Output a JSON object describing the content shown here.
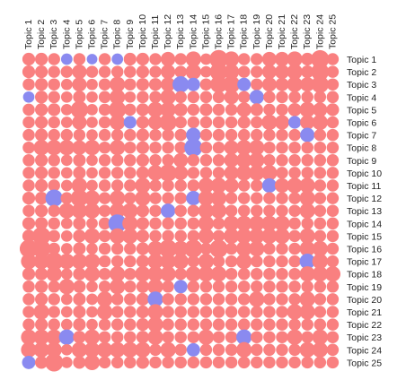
{
  "chart_data": {
    "type": "heatmap",
    "title": "",
    "xlabel": "",
    "ylabel": "",
    "encoding": "bubble matrix: circle area grows with |value|; color shows sign",
    "value_range": [
      -1,
      1
    ],
    "colors": {
      "positive": "#f98080",
      "negative": "#8a8af0"
    },
    "x_labels": [
      "Topic 1",
      "Topic 2",
      "Topic 3",
      "Topic 4",
      "Topic 5",
      "Topic 6",
      "Topic 7",
      "Topic 8",
      "Topic 9",
      "Topic 10",
      "Topic 11",
      "Topic 12",
      "Topic 13",
      "Topic 14",
      "Topic 15",
      "Topic 16",
      "Topic 17",
      "Topic 18",
      "Topic 19",
      "Topic 20",
      "Topic 21",
      "Topic 22",
      "Topic 23",
      "Topic 24",
      "Topic 25"
    ],
    "y_labels": [
      "Topic 1",
      "Topic 2",
      "Topic 3",
      "Topic 4",
      "Topic 5",
      "Topic 6",
      "Topic 7",
      "Topic 8",
      "Topic 9",
      "Topic 10",
      "Topic 11",
      "Topic 12",
      "Topic 13",
      "Topic 14",
      "Topic 15",
      "Topic 16",
      "Topic 17",
      "Topic 18",
      "Topic 19",
      "Topic 20",
      "Topic 21",
      "Topic 22",
      "Topic 23",
      "Topic 24",
      "Topic 25"
    ],
    "values": [
      [
        0.35,
        0.35,
        0.3,
        -0.25,
        0.3,
        -0.2,
        0.3,
        -0.25,
        0.35,
        0.35,
        0.3,
        0.5,
        0.3,
        0.6,
        0.25,
        0.95,
        0.6,
        0.3,
        0.3,
        0.5,
        0.5,
        0.6,
        0.35,
        0.9,
        0.3
      ],
      [
        0.35,
        0.35,
        0.3,
        0.3,
        0.5,
        0.3,
        0.3,
        0.3,
        0.3,
        0.35,
        0.3,
        0.5,
        0.3,
        0.6,
        0.25,
        0.85,
        0.6,
        0.3,
        0.3,
        0.5,
        0.5,
        0.6,
        0.35,
        0.85,
        0.3
      ],
      [
        0.3,
        0.35,
        0.3,
        0.25,
        0.5,
        0.25,
        0.3,
        0.6,
        0.3,
        0.35,
        0.35,
        0.5,
        -0.7,
        -0.4,
        0.3,
        0.75,
        0.8,
        -0.4,
        0.3,
        0.5,
        0.4,
        0.6,
        0.5,
        0.8,
        0.3
      ],
      [
        -0.25,
        0.35,
        0.3,
        0.25,
        0.35,
        0.25,
        0.3,
        0.6,
        0.25,
        0.3,
        0.3,
        0.6,
        0.3,
        0.3,
        0.3,
        0.3,
        0.5,
        0.3,
        -0.5,
        0.3,
        0.3,
        0.3,
        0.3,
        0.3,
        0.3
      ],
      [
        0.3,
        0.35,
        0.35,
        0.25,
        0.8,
        0.25,
        0.3,
        0.8,
        0.3,
        0.35,
        0.6,
        0.6,
        0.4,
        0.3,
        0.35,
        0.3,
        0.3,
        0.5,
        0.35,
        0.3,
        0.3,
        0.4,
        0.6,
        0.5,
        0.35
      ],
      [
        0.3,
        0.35,
        0.3,
        0.25,
        0.5,
        0.25,
        0.3,
        0.6,
        -0.35,
        0.35,
        0.5,
        0.8,
        0.3,
        0.3,
        0.3,
        0.3,
        0.3,
        0.35,
        0.3,
        0.6,
        0.5,
        -0.35,
        0.5,
        0.6,
        0.3
      ],
      [
        0.3,
        0.35,
        0.3,
        0.3,
        0.3,
        0.25,
        0.3,
        0.3,
        0.3,
        0.35,
        0.3,
        0.3,
        0.3,
        -0.5,
        0.3,
        0.3,
        0.3,
        0.3,
        0.3,
        0.3,
        0.3,
        0.3,
        -0.5,
        0.3,
        0.3
      ],
      [
        0.3,
        0.6,
        0.6,
        0.6,
        0.5,
        0.6,
        0.3,
        0.6,
        0.3,
        0.35,
        0.3,
        0.3,
        0.3,
        -0.9,
        0.3,
        0.3,
        0.5,
        0.6,
        0.6,
        0.3,
        0.3,
        0.3,
        0.3,
        0.3,
        0.3
      ],
      [
        0.3,
        0.35,
        0.3,
        0.25,
        0.35,
        0.25,
        0.3,
        0.3,
        0.3,
        0.35,
        0.3,
        0.3,
        0.5,
        0.3,
        0.3,
        0.3,
        0.5,
        0.6,
        0.6,
        0.3,
        0.3,
        0.3,
        0.3,
        0.3,
        0.3
      ],
      [
        0.3,
        0.35,
        0.3,
        0.25,
        0.35,
        0.25,
        0.3,
        0.3,
        0.3,
        0.35,
        0.6,
        0.8,
        0.5,
        0.3,
        0.3,
        0.3,
        0.5,
        0.6,
        0.6,
        0.6,
        0.3,
        0.3,
        0.3,
        0.3,
        0.3
      ],
      [
        0.3,
        0.35,
        0.3,
        0.25,
        0.6,
        0.25,
        0.3,
        0.3,
        0.3,
        0.6,
        0.3,
        0.3,
        0.3,
        0.3,
        0.6,
        0.6,
        0.5,
        0.3,
        0.3,
        -0.5,
        0.5,
        0.6,
        0.6,
        0.3,
        0.3
      ],
      [
        0.35,
        0.35,
        -0.8,
        0.3,
        0.8,
        0.6,
        0.3,
        0.6,
        0.3,
        0.6,
        0.3,
        0.3,
        0.3,
        -0.5,
        0.6,
        0.6,
        0.3,
        0.3,
        0.3,
        0.3,
        0.3,
        0.3,
        0.6,
        0.3,
        0.3
      ],
      [
        0.3,
        0.35,
        0.3,
        0.6,
        0.6,
        0.6,
        0.3,
        0.6,
        0.6,
        0.35,
        0.3,
        -0.5,
        0.3,
        0.3,
        0.6,
        0.6,
        0.3,
        0.3,
        0.3,
        0.3,
        0.3,
        0.3,
        0.6,
        0.3,
        0.3
      ],
      [
        0.35,
        0.35,
        0.3,
        0.25,
        0.35,
        0.25,
        0.3,
        -0.9,
        0.6,
        0.35,
        0.3,
        0.3,
        0.3,
        0.3,
        0.6,
        0.3,
        0.6,
        0.6,
        0.6,
        0.6,
        0.6,
        0.3,
        0.3,
        0.3,
        0.3
      ],
      [
        0.35,
        0.9,
        0.3,
        0.25,
        0.35,
        0.6,
        0.3,
        0.6,
        0.6,
        0.35,
        0.3,
        0.3,
        0.3,
        0.3,
        0.6,
        0.3,
        0.6,
        0.6,
        0.6,
        0.6,
        0.6,
        0.3,
        0.6,
        0.3,
        0.3
      ],
      [
        0.9,
        0.9,
        0.3,
        0.25,
        0.35,
        0.25,
        0.3,
        0.3,
        0.3,
        0.35,
        0.6,
        0.9,
        0.6,
        0.9,
        0.3,
        0.9,
        0.3,
        0.6,
        0.6,
        0.3,
        0.3,
        0.3,
        0.6,
        0.6,
        0.3
      ],
      [
        0.6,
        0.6,
        0.9,
        0.6,
        0.6,
        0.6,
        0.3,
        0.3,
        0.3,
        0.35,
        0.6,
        0.6,
        0.6,
        0.3,
        0.6,
        0.3,
        0.3,
        0.6,
        0.3,
        0.3,
        0.3,
        0.3,
        -0.6,
        0.6,
        0.3
      ],
      [
        0.35,
        0.35,
        0.6,
        0.25,
        0.35,
        0.6,
        0.3,
        0.6,
        0.3,
        0.6,
        0.6,
        0.6,
        0.3,
        0.6,
        0.6,
        0.6,
        0.3,
        0.3,
        0.3,
        0.3,
        0.3,
        0.3,
        0.6,
        0.6,
        0.6
      ],
      [
        0.3,
        0.35,
        0.3,
        0.6,
        0.35,
        0.25,
        0.3,
        0.6,
        0.3,
        0.35,
        0.6,
        0.3,
        -0.4,
        0.3,
        0.3,
        0.3,
        0.3,
        0.3,
        0.3,
        0.3,
        0.3,
        0.3,
        0.3,
        0.3,
        0.3
      ],
      [
        0.3,
        0.35,
        0.3,
        0.25,
        0.35,
        0.25,
        0.6,
        0.3,
        0.3,
        0.35,
        -0.6,
        0.3,
        0.3,
        0.3,
        0.3,
        0.3,
        0.3,
        0.3,
        0.6,
        0.3,
        0.3,
        0.3,
        0.6,
        0.3,
        0.3
      ],
      [
        0.3,
        0.6,
        0.3,
        0.25,
        0.35,
        0.25,
        0.6,
        0.3,
        0.3,
        0.35,
        0.6,
        0.3,
        0.3,
        0.3,
        0.3,
        0.3,
        0.3,
        0.3,
        0.3,
        0.3,
        0.3,
        0.6,
        0.6,
        0.3,
        0.3
      ],
      [
        0.3,
        0.35,
        0.3,
        0.25,
        0.35,
        0.25,
        0.3,
        0.3,
        0.3,
        0.35,
        0.6,
        0.3,
        0.3,
        0.3,
        0.3,
        0.3,
        0.3,
        0.3,
        0.3,
        0.3,
        0.3,
        0.3,
        0.3,
        0.3,
        0.3
      ],
      [
        0.6,
        0.6,
        0.6,
        -0.6,
        0.35,
        0.6,
        0.3,
        0.3,
        0.3,
        0.35,
        0.6,
        0.3,
        0.3,
        0.3,
        0.6,
        0.3,
        0.3,
        -0.6,
        0.3,
        0.3,
        0.3,
        0.6,
        0.3,
        0.6,
        0.3
      ],
      [
        0.6,
        0.6,
        0.6,
        0.25,
        0.6,
        0.6,
        0.6,
        0.6,
        0.6,
        0.6,
        0.3,
        0.6,
        0.3,
        -0.4,
        0.3,
        0.3,
        0.3,
        0.6,
        0.3,
        0.3,
        0.3,
        0.3,
        0.6,
        0.6,
        0.3
      ],
      [
        -0.4,
        0.35,
        0.9,
        0.25,
        0.35,
        0.6,
        0.3,
        0.3,
        0.3,
        0.35,
        0.3,
        0.3,
        0.3,
        0.3,
        0.3,
        0.3,
        0.3,
        0.3,
        0.3,
        0.3,
        0.3,
        0.3,
        0.3,
        0.3,
        0.3
      ]
    ]
  }
}
